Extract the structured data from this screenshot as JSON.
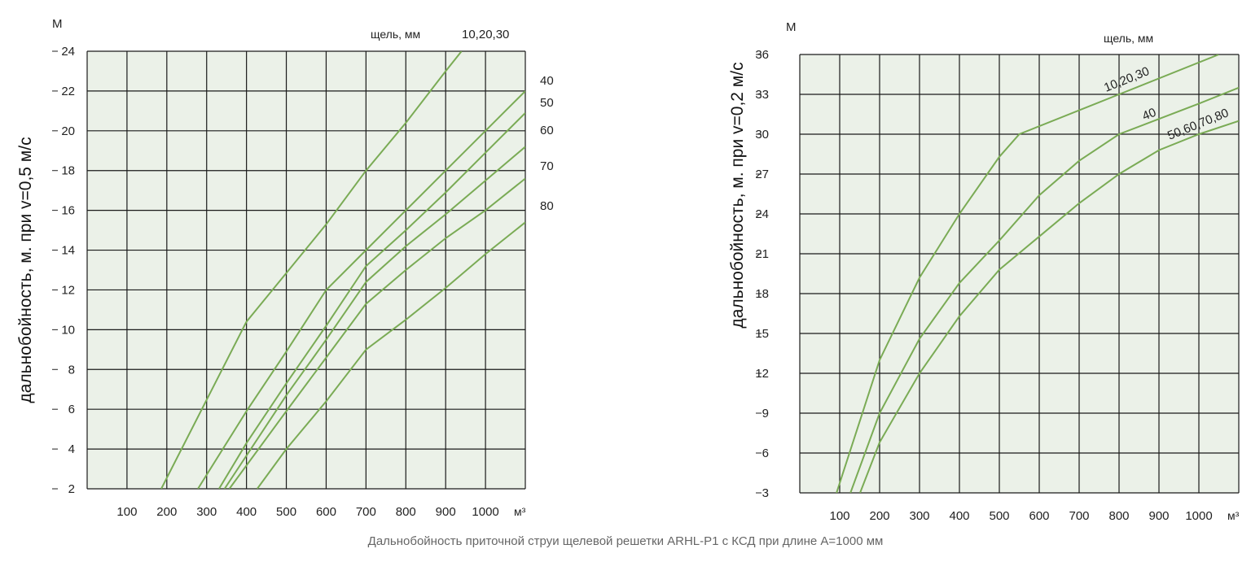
{
  "caption": "Дальнобойность приточной струи щелевой решетки ARHL-P1 с КСД при длине А=1000 мм",
  "colors": {
    "plot_bg": "#ebf1e8",
    "grid": "#1a1a1a",
    "curve": "#7aab55"
  },
  "chart_data": [
    {
      "type": "line",
      "ylabel": "дальнобойность, м. при v=0,5 м/с",
      "yunit": "М",
      "xunit": "м³",
      "legend_title": "щель, мм",
      "xlim": [
        0,
        1100
      ],
      "ylim": [
        2,
        24
      ],
      "xticks": [
        100,
        200,
        300,
        400,
        500,
        600,
        700,
        800,
        900,
        1000
      ],
      "yticks": [
        2,
        4,
        6,
        8,
        10,
        12,
        14,
        16,
        18,
        20,
        22,
        24
      ],
      "grid": true,
      "series": [
        {
          "name": "10,20,30",
          "points": [
            [
              186,
              2
            ],
            [
              400,
              10.4
            ],
            [
              600,
              15.3
            ],
            [
              700,
              18
            ],
            [
              800,
              20.4
            ],
            [
              900,
              23
            ],
            [
              940,
              24
            ]
          ]
        },
        {
          "name": "40",
          "points": [
            [
              278,
              2
            ],
            [
              400,
              5.9
            ],
            [
              500,
              8.9
            ],
            [
              600,
              12
            ],
            [
              700,
              14
            ],
            [
              800,
              16
            ],
            [
              900,
              18
            ],
            [
              1000,
              20
            ],
            [
              1100,
              22
            ]
          ]
        },
        {
          "name": "50",
          "points": [
            [
              331,
              2
            ],
            [
              400,
              4.3
            ],
            [
              500,
              7.3
            ],
            [
              600,
              10.2
            ],
            [
              700,
              13.2
            ],
            [
              800,
              15
            ],
            [
              900,
              16.9
            ],
            [
              1000,
              18.9
            ],
            [
              1100,
              20.9
            ]
          ]
        },
        {
          "name": "60",
          "points": [
            [
              345,
              2
            ],
            [
              500,
              6.7
            ],
            [
              600,
              9.5
            ],
            [
              700,
              12.4
            ],
            [
              800,
              14.2
            ],
            [
              900,
              15.8
            ],
            [
              1000,
              17.5
            ],
            [
              1100,
              19.2
            ]
          ]
        },
        {
          "name": "70",
          "points": [
            [
              357,
              2
            ],
            [
              500,
              5.9
            ],
            [
              600,
              8.6
            ],
            [
              700,
              11.3
            ],
            [
              800,
              13
            ],
            [
              900,
              14.6
            ],
            [
              1000,
              16
            ],
            [
              1100,
              17.6
            ]
          ]
        },
        {
          "name": "80",
          "points": [
            [
              427,
              2
            ],
            [
              500,
              4
            ],
            [
              600,
              6.4
            ],
            [
              700,
              9
            ],
            [
              800,
              10.5
            ],
            [
              900,
              12.1
            ],
            [
              1000,
              13.8
            ],
            [
              1100,
              15.4
            ]
          ]
        }
      ]
    },
    {
      "type": "line",
      "ylabel": "дальнобойность, м. при v=0,2 м/с",
      "yunit": "М",
      "xunit": "м³",
      "legend_title": "щель, мм",
      "xlim": [
        0,
        1100
      ],
      "ylim": [
        3,
        36
      ],
      "xticks": [
        100,
        200,
        300,
        400,
        500,
        600,
        700,
        800,
        900,
        1000
      ],
      "yticks": [
        3,
        6,
        9,
        12,
        15,
        18,
        21,
        24,
        27,
        30,
        33,
        36
      ],
      "grid": true,
      "series": [
        {
          "name": "10,20,30",
          "points": [
            [
              92,
              3
            ],
            [
              200,
              13
            ],
            [
              300,
              19.2
            ],
            [
              400,
              24
            ],
            [
              500,
              28.3
            ],
            [
              550,
              30
            ],
            [
              800,
              33
            ],
            [
              1050,
              36
            ]
          ]
        },
        {
          "name": "40",
          "points": [
            [
              127,
              3
            ],
            [
              200,
              9
            ],
            [
              300,
              14.6
            ],
            [
              400,
              18.8
            ],
            [
              500,
              22
            ],
            [
              600,
              25.4
            ],
            [
              700,
              28
            ],
            [
              800,
              30
            ],
            [
              1000,
              32.3
            ],
            [
              1100,
              33.5
            ]
          ]
        },
        {
          "name": "50,60,70,80",
          "points": [
            [
              151,
              3
            ],
            [
              200,
              6.8
            ],
            [
              300,
              12
            ],
            [
              400,
              16.3
            ],
            [
              500,
              19.8
            ],
            [
              600,
              22.3
            ],
            [
              700,
              24.8
            ],
            [
              800,
              27
            ],
            [
              900,
              28.8
            ],
            [
              1000,
              30
            ],
            [
              1100,
              31
            ]
          ]
        }
      ]
    }
  ]
}
